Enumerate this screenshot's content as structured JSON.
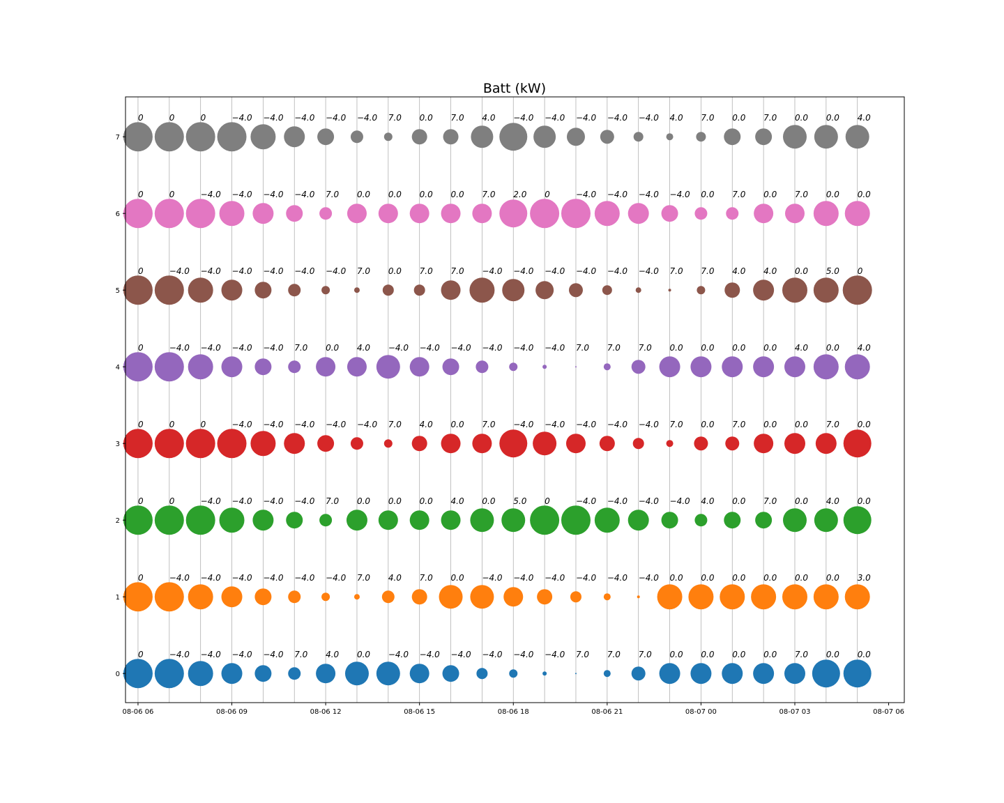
{
  "chart_data": {
    "type": "scatter",
    "title": "Batt (kW)",
    "xlabel": "",
    "ylabel": "",
    "x_ticks": [
      "08-06 06",
      "08-06 09",
      "08-06 12",
      "08-06 15",
      "08-06 18",
      "08-06 21",
      "08-07 00",
      "08-07 03",
      "08-07 06"
    ],
    "y_ticks": [
      "0",
      "1",
      "2",
      "3",
      "4",
      "5",
      "6",
      "7"
    ],
    "x_range_hours": [
      -0.4,
      24.5
    ],
    "ylim": [
      -0.38,
      7.52
    ],
    "x_hours": [
      0,
      1,
      2,
      3,
      4,
      5,
      6,
      7,
      8,
      9,
      10,
      11,
      12,
      13,
      14,
      15,
      16,
      17,
      18,
      19,
      20,
      21,
      22,
      23
    ],
    "grid": "vertical",
    "series": [
      {
        "color": "#1f77b4",
        "labels": [
          "0",
          "-4.0",
          "-4.0",
          "-4.0",
          "-4.0",
          "7.0",
          "4.0",
          "0.0",
          "-4.0",
          "-4.0",
          "-4.0",
          "-4.0",
          "-4.0",
          "-4.0",
          "7.0",
          "7.0",
          "7.0",
          "0.0",
          "0.0",
          "0.0",
          "0.0",
          "7.0",
          "0.0",
          "0.0"
        ],
        "sizes": [
          21,
          21,
          18,
          15,
          12,
          9,
          14,
          17,
          17,
          14,
          12,
          8,
          6,
          3,
          1,
          5,
          10,
          15,
          15,
          15,
          15,
          15,
          20,
          20
        ]
      },
      {
        "color": "#ff7f0e",
        "labels": [
          "0",
          "-4.0",
          "-4.0",
          "-4.0",
          "-4.0",
          "-4.0",
          "-4.0",
          "7.0",
          "4.0",
          "7.0",
          "0.0",
          "-4.0",
          "-4.0",
          "-4.0",
          "-4.0",
          "-4.0",
          "-4.0",
          "0.0",
          "0.0",
          "0.0",
          "0.0",
          "0.0",
          "0.0",
          "3.0"
        ],
        "sizes": [
          21,
          21,
          18,
          15,
          12,
          9,
          6,
          4,
          9,
          11,
          17,
          17,
          14,
          11,
          8,
          5,
          2,
          18,
          18,
          18,
          18,
          18,
          18,
          18
        ]
      },
      {
        "color": "#2ca02c",
        "labels": [
          "0",
          "0",
          "-4.0",
          "-4.0",
          "-4.0",
          "-4.0",
          "7.0",
          "0.0",
          "0.0",
          "0.0",
          "4.0",
          "0.0",
          "5.0",
          "0",
          "-4.0",
          "-4.0",
          "-4.0",
          "-4.0",
          "4.0",
          "0.0",
          "7.0",
          "0.0",
          "4.0",
          "0.0"
        ],
        "sizes": [
          21,
          21,
          21,
          18,
          15,
          12,
          9,
          15,
          14,
          14,
          14,
          17,
          17,
          21,
          21,
          18,
          15,
          12,
          9,
          12,
          12,
          17,
          17,
          20
        ]
      },
      {
        "color": "#d62728",
        "labels": [
          "0",
          "0",
          "0",
          "-4.0",
          "-4.0",
          "-4.0",
          "-4.0",
          "-4.0",
          "7.0",
          "4.0",
          "0.0",
          "7.0",
          "-4.0",
          "-4.0",
          "-4.0",
          "-4.0",
          "-4.0",
          "7.0",
          "0.0",
          "7.0",
          "0.0",
          "0.0",
          "7.0",
          "0.0"
        ],
        "sizes": [
          21,
          21,
          21,
          21,
          18,
          15,
          12,
          9,
          6,
          11,
          14,
          14,
          20,
          17,
          14,
          11,
          8,
          5,
          10,
          10,
          14,
          15,
          15,
          20
        ]
      },
      {
        "color": "#9467bd",
        "labels": [
          "0",
          "-4.0",
          "-4.0",
          "-4.0",
          "-4.0",
          "7.0",
          "0.0",
          "4.0",
          "-4.0",
          "-4.0",
          "-4.0",
          "-4.0",
          "-4.0",
          "-4.0",
          "7.0",
          "7.0",
          "7.0",
          "0.0",
          "0.0",
          "0.0",
          "0.0",
          "4.0",
          "0.0",
          "4.0"
        ],
        "sizes": [
          21,
          21,
          18,
          15,
          12,
          9,
          14,
          14,
          17,
          14,
          12,
          9,
          6,
          3,
          1,
          5,
          10,
          15,
          15,
          15,
          15,
          15,
          18,
          18
        ]
      },
      {
        "color": "#8c564b",
        "labels": [
          "0",
          "-4.0",
          "-4.0",
          "-4.0",
          "-4.0",
          "-4.0",
          "-4.0",
          "7.0",
          "0.0",
          "7.0",
          "7.0",
          "-4.0",
          "-4.0",
          "-4.0",
          "-4.0",
          "-4.0",
          "-4.0",
          "7.0",
          "7.0",
          "4.0",
          "4.0",
          "0.0",
          "5.0",
          "0"
        ],
        "sizes": [
          21,
          21,
          18,
          15,
          12,
          9,
          6,
          4,
          8,
          8,
          14,
          18,
          16,
          13,
          10,
          7,
          4,
          2,
          6,
          11,
          15,
          18,
          18,
          21
        ]
      },
      {
        "color": "#e377c2",
        "labels": [
          "0",
          "0",
          "-4.0",
          "-4.0",
          "-4.0",
          "-4.0",
          "7.0",
          "0.0",
          "0.0",
          "0.0",
          "0.0",
          "7.0",
          "2.0",
          "0",
          "-4.0",
          "-4.0",
          "-4.0",
          "-4.0",
          "0.0",
          "7.0",
          "0.0",
          "7.0",
          "0.0",
          "0.0"
        ],
        "sizes": [
          21,
          21,
          21,
          18,
          15,
          12,
          9,
          14,
          14,
          14,
          14,
          14,
          20,
          21,
          21,
          18,
          15,
          12,
          9,
          9,
          14,
          14,
          18,
          18
        ]
      },
      {
        "color": "#7f7f7f",
        "labels": [
          "0",
          "0",
          "0",
          "-4.0",
          "-4.0",
          "-4.0",
          "-4.0",
          "-4.0",
          "7.0",
          "0.0",
          "7.0",
          "4.0",
          "-4.0",
          "-4.0",
          "-4.0",
          "-4.0",
          "-4.0",
          "4.0",
          "7.0",
          "0.0",
          "7.0",
          "0.0",
          "0.0",
          "4.0"
        ],
        "sizes": [
          21,
          21,
          21,
          21,
          18,
          15,
          12,
          9,
          6,
          11,
          11,
          16,
          20,
          16,
          13,
          10,
          7,
          5,
          7,
          12,
          12,
          17,
          17,
          17
        ]
      }
    ]
  }
}
